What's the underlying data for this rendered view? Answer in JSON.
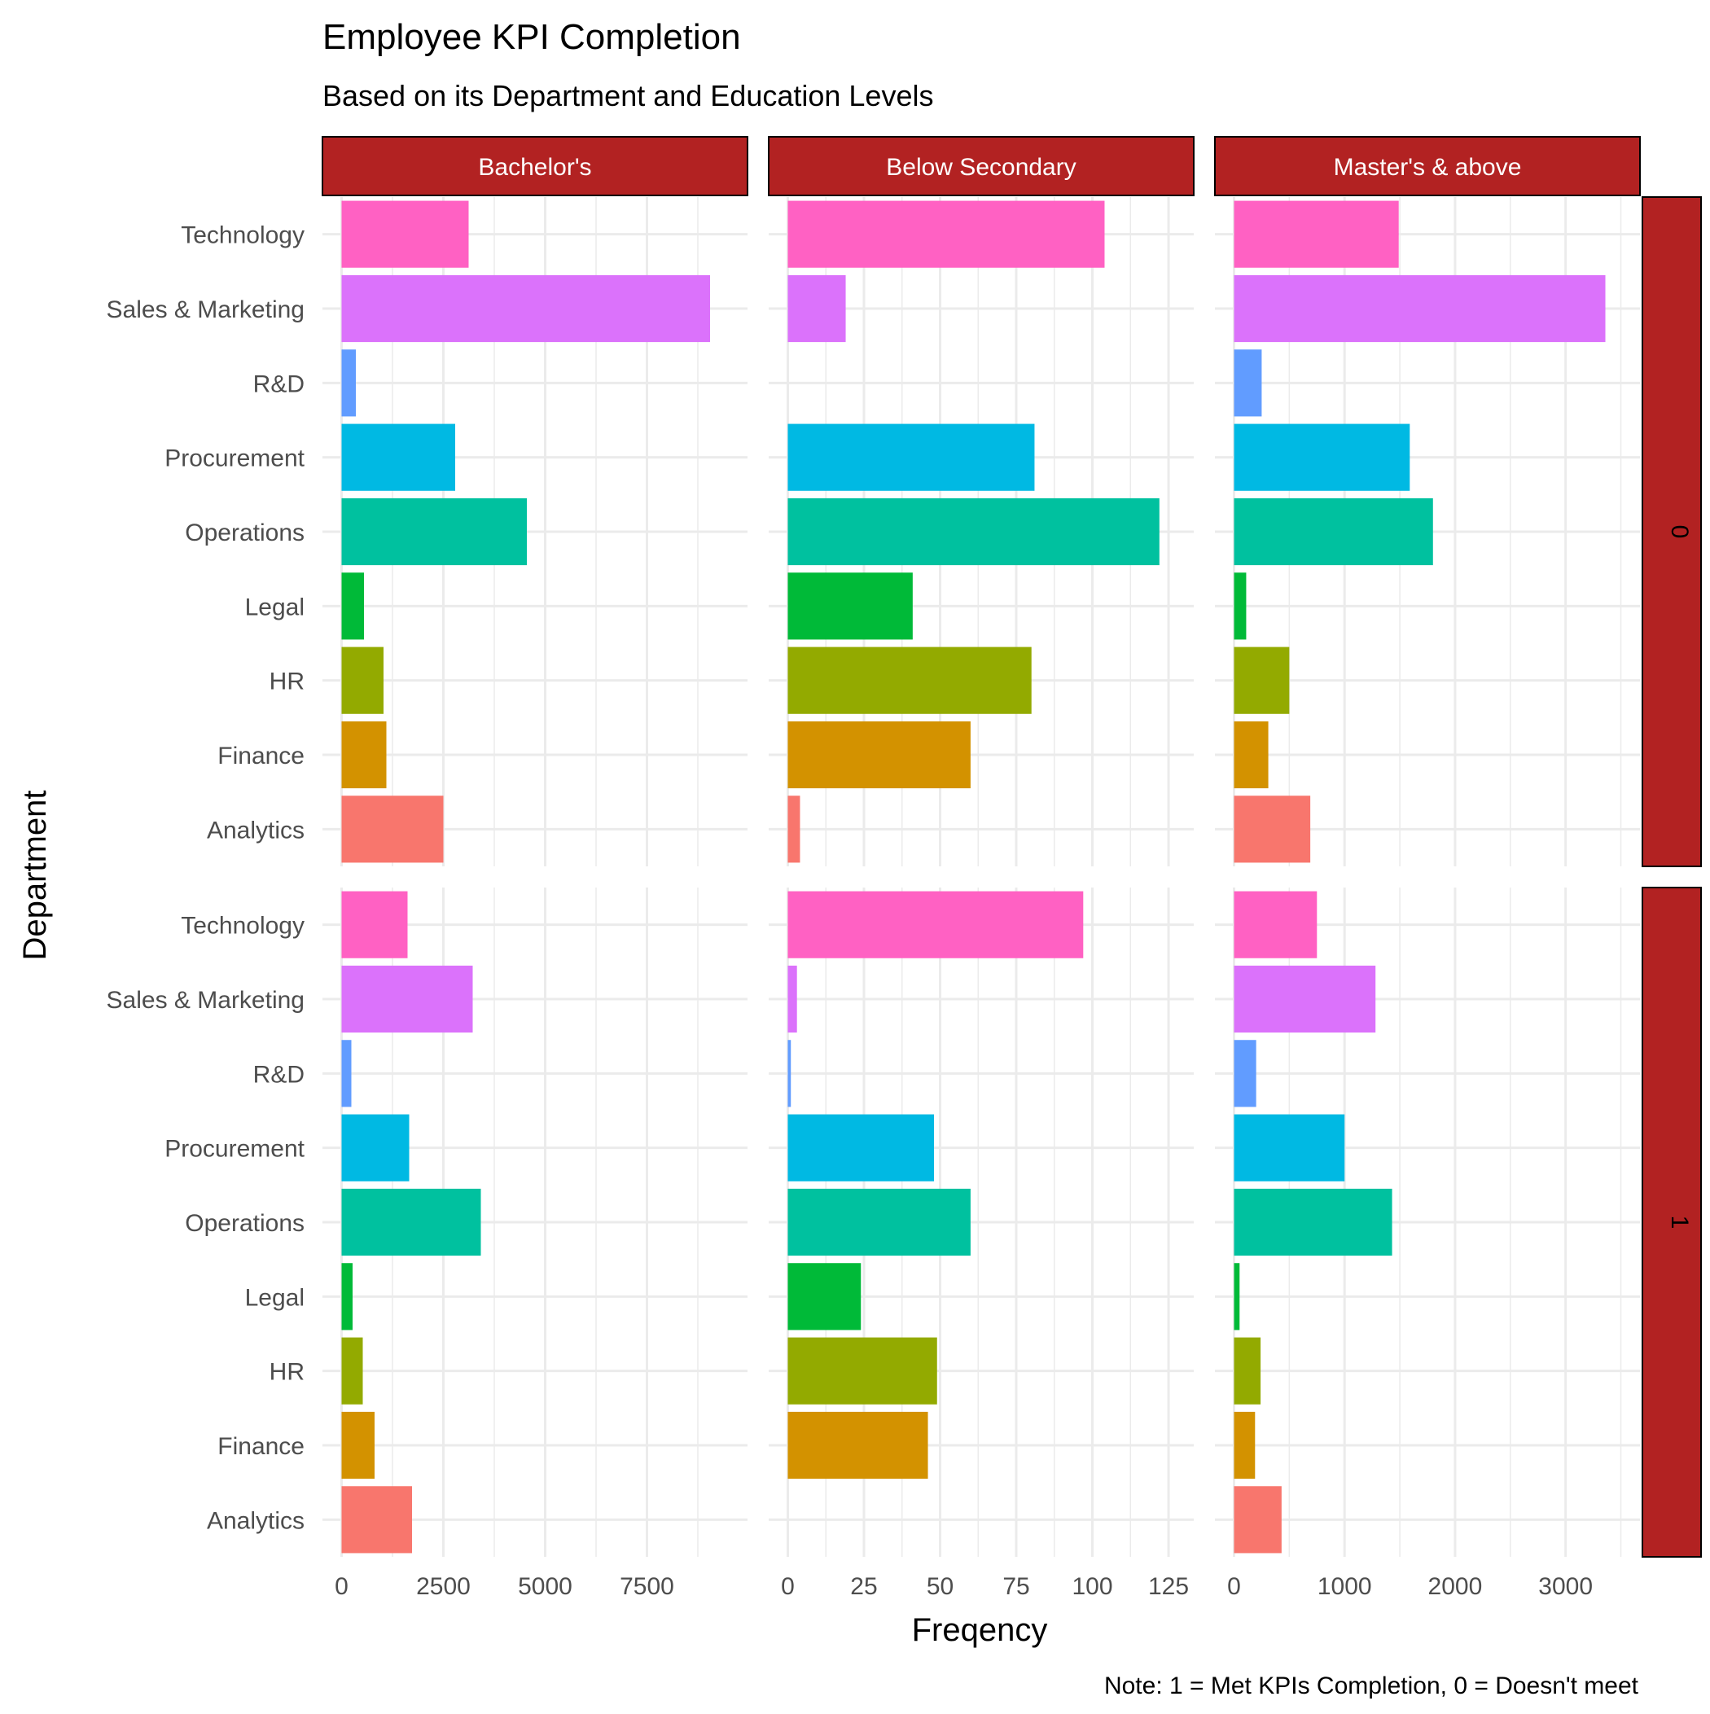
{
  "chart_data": {
    "type": "bar",
    "orientation": "horizontal",
    "title": "Employee KPI Completion",
    "subtitle": "Based on its Department and Education Levels",
    "xlabel": "Freqency",
    "ylabel": "Department",
    "caption": "Note: 1 = Met KPIs Completion, 0 = Doesn't meet",
    "grid": true,
    "legend": "none",
    "strip_color": "#b22222",
    "categories": [
      "Analytics",
      "Finance",
      "HR",
      "Legal",
      "Operations",
      "Procurement",
      "R&D",
      "Sales & Marketing",
      "Technology"
    ],
    "category_colors": [
      "#F8766D",
      "#D39200",
      "#93AA00",
      "#00BA38",
      "#00C19F",
      "#00B9E3",
      "#619CFF",
      "#DB72FB",
      "#FF61C3"
    ],
    "columns": [
      {
        "label": "Bachelor's",
        "xlim": [
          0,
          9500
        ],
        "ticks": [
          0,
          2500,
          5000,
          7500
        ],
        "tick_labels": [
          "0",
          "2500",
          "5000",
          "7500"
        ]
      },
      {
        "label": "Below Secondary",
        "xlim": [
          0,
          127
        ],
        "ticks": [
          0,
          25,
          50,
          75,
          100,
          125
        ],
        "tick_labels": [
          "0",
          "25",
          "50",
          "75",
          "100",
          "125"
        ]
      },
      {
        "label": "Master's & above",
        "xlim": [
          0,
          3500
        ],
        "ticks": [
          0,
          1000,
          2000,
          3000
        ],
        "tick_labels": [
          "0",
          "1000",
          "2000",
          "3000"
        ]
      }
    ],
    "rows": [
      {
        "label": "0",
        "values": [
          [
            2500,
            1100,
            1030,
            550,
            4550,
            2790,
            350,
            9050,
            3120
          ],
          [
            4,
            60,
            80,
            41,
            122,
            81,
            0,
            19,
            104
          ],
          [
            690,
            310,
            500,
            110,
            1800,
            1590,
            250,
            3360,
            1490
          ]
        ]
      },
      {
        "label": "1",
        "values": [
          [
            1730,
            810,
            520,
            270,
            3420,
            1660,
            240,
            3220,
            1620
          ],
          [
            0,
            46,
            49,
            24,
            60,
            48,
            1,
            3,
            97
          ],
          [
            430,
            190,
            240,
            50,
            1430,
            1000,
            200,
            1280,
            750
          ]
        ]
      }
    ]
  }
}
